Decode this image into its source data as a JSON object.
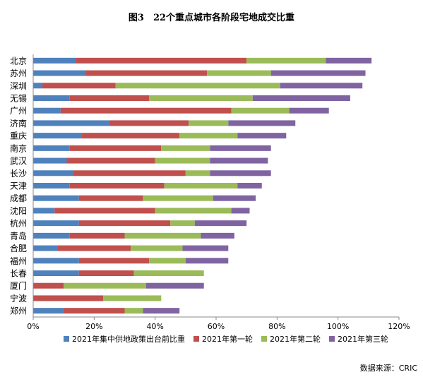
{
  "chart_data": {
    "type": "bar",
    "orientation": "horizontal",
    "stacked": true,
    "title": "图3　22个重点城市各阶段宅地成交比重",
    "categories": [
      "北京",
      "苏州",
      "深圳",
      "无锡",
      "广州",
      "济南",
      "重庆",
      "南京",
      "武汉",
      "长沙",
      "天津",
      "成都",
      "沈阳",
      "杭州",
      "青岛",
      "合肥",
      "福州",
      "长春",
      "厦门",
      "宁波",
      "郑州"
    ],
    "series": [
      {
        "name": "2021年集中供地政策出台前比重",
        "color": "#4f81bd",
        "values": [
          14,
          17,
          3,
          12,
          9,
          25,
          16,
          12,
          11,
          13,
          12,
          15,
          7,
          15,
          12,
          8,
          15,
          15,
          0,
          0,
          10
        ]
      },
      {
        "name": "2021年第一轮",
        "color": "#c0504d",
        "values": [
          56,
          40,
          24,
          26,
          56,
          26,
          32,
          30,
          29,
          37,
          31,
          21,
          33,
          30,
          18,
          24,
          23,
          18,
          10,
          23,
          20
        ]
      },
      {
        "name": "2021年第二轮",
        "color": "#9bbb59",
        "values": [
          26,
          21,
          54,
          34,
          19,
          13,
          19,
          16,
          18,
          8,
          24,
          23,
          25,
          8,
          25,
          17,
          12,
          23,
          27,
          19,
          6
        ]
      },
      {
        "name": "2021年第三轮",
        "color": "#8064a2",
        "values": [
          15,
          31,
          27,
          32,
          13,
          22,
          16,
          20,
          19,
          20,
          8,
          14,
          6,
          17,
          11,
          15,
          14,
          0,
          19,
          0,
          12
        ]
      }
    ],
    "xlim": [
      0,
      120
    ],
    "xticks": [
      "0%",
      "20%",
      "40%",
      "60%",
      "80%",
      "100%",
      "120%"
    ],
    "grid": false,
    "legend_position": "bottom"
  },
  "source_note": "数据来源：CRIC"
}
